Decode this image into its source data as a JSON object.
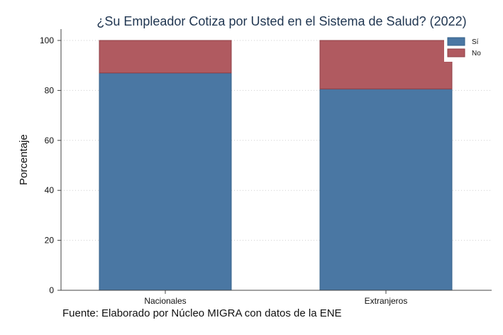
{
  "chart_data": {
    "type": "bar",
    "stacked": true,
    "title": "¿Su Empleador Cotiza por Usted en el Sistema de Salud? (2022)",
    "ylabel": "Porcentaje",
    "xlabel": "",
    "categories": [
      "Nacionales",
      "Extranjeros"
    ],
    "series": [
      {
        "name": "Sí",
        "values": [
          87,
          80.6
        ],
        "color": "#4a77a3"
      },
      {
        "name": "No",
        "values": [
          13,
          19.4
        ],
        "color": "#b05a60"
      }
    ],
    "ylim": [
      0,
      100
    ],
    "yticks": [
      0,
      20,
      40,
      60,
      80,
      100
    ],
    "grid": true,
    "legend_position": "top-right"
  },
  "source_note": "Fuente: Elaborado por Núcleo MIGRA con datos de la ENE"
}
